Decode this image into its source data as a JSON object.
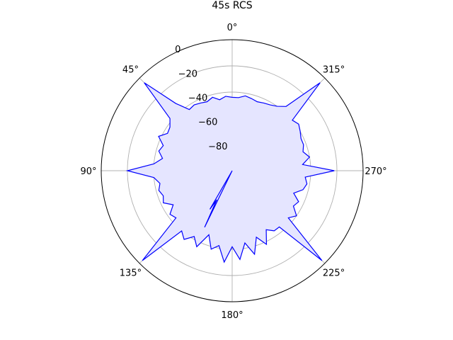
{
  "chart_data": {
    "type": "line",
    "title": "45s RCS",
    "polar": true,
    "theta_zero": "N",
    "theta_direction": "counterclockwise",
    "rlim": [
      -100,
      0
    ],
    "radial_ticks": [
      -80,
      -60,
      -40,
      -20,
      0
    ],
    "radial_tick_labels": [
      "−80",
      "−60",
      "−40",
      "−20",
      "0"
    ],
    "angle_ticks": [
      0,
      45,
      90,
      135,
      180,
      225,
      270,
      315
    ],
    "angle_tick_labels": [
      "0°",
      "45°",
      "90°",
      "135°",
      "180°",
      "225°",
      "270°",
      "315°"
    ],
    "grid": true,
    "series": [
      {
        "color": "#0000ff",
        "fill": "#e5e5ff",
        "theta": [
          0,
          5,
          10,
          15,
          20,
          25,
          30,
          35,
          40,
          45,
          50,
          55,
          60,
          65,
          70,
          75,
          80,
          85,
          90,
          95,
          100,
          105,
          110,
          115,
          120,
          125,
          130,
          135,
          140,
          145,
          150,
          155,
          160,
          165,
          170,
          175,
          180,
          185,
          190,
          195,
          200,
          205,
          210,
          215,
          220,
          225,
          230,
          235,
          240,
          245,
          250,
          255,
          260,
          265,
          270,
          275,
          280,
          285,
          290,
          295,
          300,
          305,
          310,
          315,
          320,
          325,
          330,
          335,
          340,
          345,
          350,
          355
        ],
        "r": [
          -44,
          -43,
          -45,
          -42,
          -44,
          -43,
          -42,
          -43,
          -33,
          -5,
          -38,
          -42,
          -43,
          -38,
          -44,
          -42,
          -46,
          -40,
          -20,
          -40,
          -44,
          -42,
          -44,
          -42,
          -48,
          -42,
          -44,
          -3,
          -40,
          -36,
          -42,
          -36,
          -48,
          -38,
          -42,
          -30,
          -42,
          -32,
          -44,
          -34,
          -46,
          -38,
          -48,
          -44,
          -44,
          -3,
          -44,
          -40,
          -46,
          -44,
          -50,
          -44,
          -42,
          -44,
          -22,
          -46,
          -40,
          -44,
          -42,
          -42,
          -40,
          -38,
          -40,
          -5,
          -36,
          -40,
          -42,
          -43,
          -44,
          -43,
          -42,
          -44
        ]
      },
      {
        "color": "#0000ff",
        "fill": "#e5e5ff",
        "theta": [
          150,
          152,
          154
        ],
        "r": [
          -66,
          -75,
          -52
        ]
      }
    ]
  }
}
